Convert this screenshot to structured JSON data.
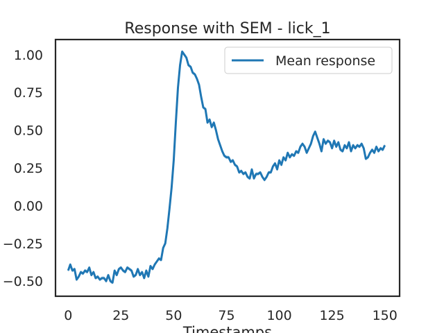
{
  "chart_data": {
    "type": "line",
    "title": "Response with SEM - lick_1",
    "xlabel": "Timestamps",
    "ylabel": "",
    "xlim": [
      -6,
      157
    ],
    "ylim": [
      -0.6,
      1.1
    ],
    "xticks": [
      0,
      25,
      50,
      75,
      100,
      125,
      150
    ],
    "yticks": [
      1.0,
      0.75,
      0.5,
      0.25,
      0.0,
      -0.25,
      -0.5
    ],
    "xtick_labels": [
      "0",
      "25",
      "50",
      "75",
      "100",
      "125",
      "150"
    ],
    "ytick_labels": [
      "1.00",
      "0.75",
      "0.50",
      "0.25",
      "0.00",
      "−0.25",
      "−0.50"
    ],
    "grid": false,
    "legend_position": "top-right",
    "series": [
      {
        "name": "Mean response",
        "color": "#1f77b4",
        "x": [
          0,
          1,
          2,
          3,
          4,
          5,
          6,
          7,
          8,
          9,
          10,
          11,
          12,
          13,
          14,
          15,
          16,
          17,
          18,
          19,
          20,
          21,
          22,
          23,
          24,
          25,
          26,
          27,
          28,
          29,
          30,
          31,
          32,
          33,
          34,
          35,
          36,
          37,
          38,
          39,
          40,
          41,
          42,
          43,
          44,
          45,
          46,
          47,
          48,
          49,
          50,
          51,
          52,
          53,
          54,
          55,
          56,
          57,
          58,
          59,
          60,
          61,
          62,
          63,
          64,
          65,
          66,
          67,
          68,
          69,
          70,
          71,
          72,
          73,
          74,
          75,
          76,
          77,
          78,
          79,
          80,
          81,
          82,
          83,
          84,
          85,
          86,
          87,
          88,
          89,
          90,
          91,
          92,
          93,
          94,
          95,
          96,
          97,
          98,
          99,
          100,
          101,
          102,
          103,
          104,
          105,
          106,
          107,
          108,
          109,
          110,
          111,
          112,
          113,
          114,
          115,
          116,
          117,
          118,
          119,
          120,
          121,
          122,
          123,
          124,
          125,
          126,
          127,
          128,
          129,
          130,
          131,
          132,
          133,
          134,
          135,
          136,
          137,
          138,
          139,
          140,
          141,
          142,
          143,
          144,
          145,
          146,
          147,
          148,
          149,
          150
        ],
        "values": [
          -0.43,
          -0.39,
          -0.43,
          -0.42,
          -0.49,
          -0.47,
          -0.44,
          -0.45,
          -0.43,
          -0.44,
          -0.41,
          -0.46,
          -0.44,
          -0.48,
          -0.47,
          -0.49,
          -0.48,
          -0.48,
          -0.5,
          -0.46,
          -0.5,
          -0.51,
          -0.43,
          -0.46,
          -0.42,
          -0.41,
          -0.43,
          -0.44,
          -0.41,
          -0.42,
          -0.43,
          -0.47,
          -0.46,
          -0.42,
          -0.46,
          -0.44,
          -0.48,
          -0.43,
          -0.47,
          -0.4,
          -0.42,
          -0.39,
          -0.37,
          -0.35,
          -0.36,
          -0.28,
          -0.25,
          -0.15,
          -0.02,
          0.12,
          0.3,
          0.55,
          0.78,
          0.93,
          1.02,
          1.0,
          0.98,
          0.93,
          0.92,
          0.88,
          0.87,
          0.84,
          0.8,
          0.72,
          0.65,
          0.64,
          0.55,
          0.57,
          0.52,
          0.55,
          0.5,
          0.44,
          0.4,
          0.36,
          0.33,
          0.32,
          0.32,
          0.29,
          0.3,
          0.27,
          0.26,
          0.22,
          0.23,
          0.21,
          0.22,
          0.19,
          0.18,
          0.24,
          0.18,
          0.21,
          0.21,
          0.22,
          0.19,
          0.17,
          0.19,
          0.22,
          0.22,
          0.26,
          0.28,
          0.24,
          0.3,
          0.27,
          0.32,
          0.3,
          0.35,
          0.32,
          0.34,
          0.33,
          0.36,
          0.35,
          0.39,
          0.41,
          0.39,
          0.35,
          0.38,
          0.41,
          0.46,
          0.49,
          0.45,
          0.41,
          0.36,
          0.44,
          0.41,
          0.43,
          0.42,
          0.38,
          0.43,
          0.39,
          0.42,
          0.37,
          0.36,
          0.4,
          0.38,
          0.42,
          0.36,
          0.4,
          0.38,
          0.4,
          0.39,
          0.41,
          0.38,
          0.31,
          0.32,
          0.35,
          0.37,
          0.35,
          0.39,
          0.36,
          0.38,
          0.37,
          0.4
        ]
      }
    ]
  }
}
